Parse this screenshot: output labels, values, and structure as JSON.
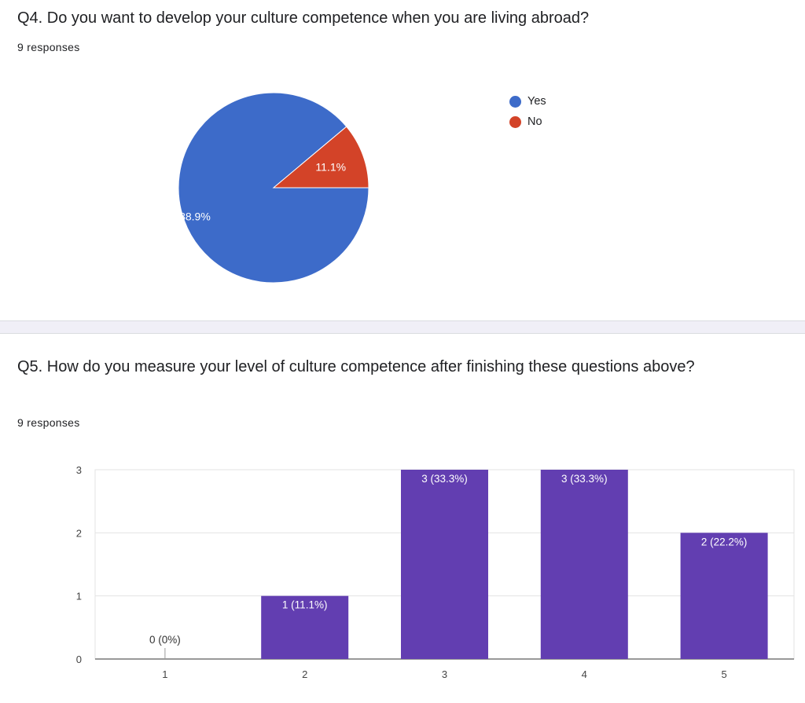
{
  "q4": {
    "title": "Q4. Do you want to develop your culture competence when you are living abroad?",
    "responses": "9 responses"
  },
  "q5": {
    "title": "Q5. How do you measure your level of culture competence after finishing these questions above?",
    "responses": "9 responses"
  },
  "chart_data": [
    {
      "type": "pie",
      "categories": [
        "Yes",
        "No"
      ],
      "values": [
        8,
        1
      ],
      "data_labels": [
        "88.9%",
        "11.1%"
      ],
      "colors": [
        "#3d6bc9",
        "#d34328"
      ],
      "legend_position": "right"
    },
    {
      "type": "bar",
      "categories": [
        "1",
        "2",
        "3",
        "4",
        "5"
      ],
      "values": [
        0,
        1,
        3,
        3,
        2
      ],
      "data_labels": [
        "0 (0%)",
        "1 (11.1%)",
        "3 (33.3%)",
        "3 (33.3%)",
        "2 (22.2%)"
      ],
      "ylim": [
        0,
        3
      ],
      "yticks": [
        0,
        1,
        2,
        3
      ],
      "grid": true,
      "color": "#623eb1"
    }
  ]
}
